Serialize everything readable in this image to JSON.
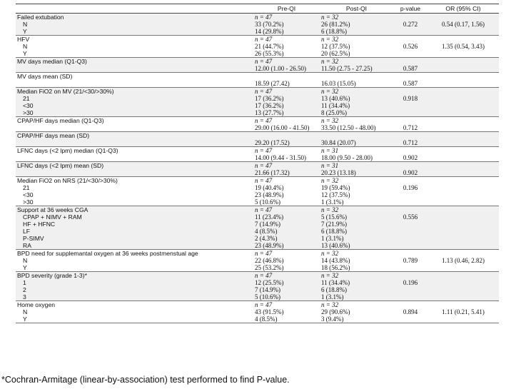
{
  "header": {
    "label": "",
    "pre": "Pre-QI",
    "post": "Post-QI",
    "pvalue": "p-value",
    "or": "OR (95% CI)"
  },
  "groups": [
    {
      "title": "Failed extubation",
      "pre_n": "n = 47",
      "post_n": "n = 32",
      "p": "",
      "or": "",
      "rows": [
        {
          "label": "N",
          "pre": "33 (70.2%)",
          "post": "26 (81.2%)",
          "p": "0.272",
          "or": "0.54 (0.17, 1.56)"
        },
        {
          "label": "Y",
          "pre": "14 (29.8%)",
          "post": "6 (18.8%)",
          "p": "",
          "or": ""
        }
      ]
    },
    {
      "title": "HFV",
      "pre_n": "n = 47",
      "post_n": "n = 32",
      "p": "",
      "or": "",
      "rows": [
        {
          "label": "N",
          "pre": "21 (44.7%)",
          "post": "12 (37.5%)",
          "p": "0.526",
          "or": "1.35 (0.54, 3.43)"
        },
        {
          "label": "Y",
          "pre": "26 (55.3%)",
          "post": "20 (62.5%)",
          "p": "",
          "or": ""
        }
      ]
    },
    {
      "title": "MV days median (Q1-Q3)",
      "pre_n": "n = 47",
      "post_n": "n = 32",
      "p": "",
      "or": "",
      "rows": [
        {
          "label": "",
          "pre": "12.00 (1.00 - 26.50)",
          "post": "11.50 (2.75 - 27.25)",
          "p": "0.587",
          "or": ""
        }
      ]
    },
    {
      "title": "MV days mean (SD)",
      "pre_n": "",
      "post_n": "",
      "p": "",
      "or": "",
      "rows": [
        {
          "label": "",
          "pre": "18.59 (27.42)",
          "post": "16.03 (15.05)",
          "p": "0.587",
          "or": ""
        }
      ]
    },
    {
      "title": "Median FiO2 on MV (21/<30/>30%)",
      "pre_n": "n = 47",
      "post_n": "n = 32",
      "p": "",
      "or": "",
      "rows": [
        {
          "label": "21",
          "pre": "17 (36.2%)",
          "post": "13 (40.6%)",
          "p": "0.918",
          "or": ""
        },
        {
          "label": "<30",
          "pre": "17 (36.2%)",
          "post": "11 (34.4%)",
          "p": "",
          "or": ""
        },
        {
          "label": ">30",
          "pre": "13 (27.7%)",
          "post": "8 (25.0%)",
          "p": "",
          "or": ""
        }
      ]
    },
    {
      "title": "CPAP/HF days median (Q1-Q3)",
      "pre_n": "n = 47",
      "post_n": "n = 32",
      "p": "",
      "or": "",
      "rows": [
        {
          "label": "",
          "pre": "29.00 (16.00 - 41.50)",
          "post": "33.50 (12.50 - 48.00)",
          "p": "0.712",
          "or": ""
        }
      ]
    },
    {
      "title": "CPAP/HF days mean (SD)",
      "pre_n": "",
      "post_n": "",
      "p": "",
      "or": "",
      "rows": [
        {
          "label": "",
          "pre": "29.20 (17.52)",
          "post": "30.84 (20.07)",
          "p": "0.712",
          "or": ""
        }
      ]
    },
    {
      "title": "LFNC days (<2 lpm) median (Q1-Q3)",
      "pre_n": "n = 47",
      "post_n": "n = 31",
      "p": "",
      "or": "",
      "rows": [
        {
          "label": "",
          "pre": "14.00 (9.44 - 31.50)",
          "post": "18.00 (9.50 - 28.00)",
          "p": "0.902",
          "or": ""
        }
      ]
    },
    {
      "title": "LFNC days (<2 lpm) mean (SD)",
      "pre_n": "n = 47",
      "post_n": "n = 31",
      "p": "",
      "or": "",
      "rows": [
        {
          "label": "",
          "pre": "21.66 (17.32)",
          "post": "20.23 (13.18)",
          "p": "0.902",
          "or": ""
        }
      ]
    },
    {
      "title": "Median FiO2 on NRS (21/<30/>30%)",
      "pre_n": "n = 47",
      "post_n": "n = 32",
      "p": "",
      "or": "",
      "rows": [
        {
          "label": "21",
          "pre": "19 (40.4%)",
          "post": "19 (59.4%)",
          "p": "0.196",
          "or": ""
        },
        {
          "label": "<30",
          "pre": "23 (48.9%)",
          "post": "12 (37.5%)",
          "p": "",
          "or": ""
        },
        {
          "label": ">30",
          "pre": "5 (10.6%)",
          "post": "1 (3.1%)",
          "p": "",
          "or": ""
        }
      ]
    },
    {
      "title": "Support at 36 weeks CGA",
      "pre_n": "n = 47",
      "post_n": "n = 32",
      "p": "",
      "or": "",
      "rows": [
        {
          "label": "CPAP + NIMV + RAM",
          "pre": "11 (23.4%)",
          "post": "5 (15.6%)",
          "p": "0.556",
          "or": ""
        },
        {
          "label": "HF + HFNC",
          "pre": "7 (14.9%)",
          "post": "7 (21.9%)",
          "p": "",
          "or": ""
        },
        {
          "label": "LF",
          "pre": "4 (8.5%)",
          "post": "6 (18.8%)",
          "p": "",
          "or": ""
        },
        {
          "label": "P-SIMV",
          "pre": "2 (4.3%)",
          "post": "1 (3.1%)",
          "p": "",
          "or": ""
        },
        {
          "label": "RA",
          "pre": "23 (48.9%)",
          "post": "13 (40.6%)",
          "p": "",
          "or": ""
        }
      ]
    },
    {
      "title": "BPD need for supplemantal oxygen at 36 weeks postmenstual age",
      "pre_n": "n = 47",
      "post_n": "n = 32",
      "p": "",
      "or": "",
      "rows": [
        {
          "label": "N",
          "pre": "22 (46.8%)",
          "post": "14 (43.8%)",
          "p": "0.789",
          "or": "1.13 (0.46, 2.82)"
        },
        {
          "label": "Y",
          "pre": "25 (53.2%)",
          "post": "18 (56.2%)",
          "p": "",
          "or": ""
        }
      ]
    },
    {
      "title": "BPD severity (grade 1-3)*",
      "pre_n": "n = 47",
      "post_n": "n = 32",
      "p": "",
      "or": "",
      "rows": [
        {
          "label": "1",
          "pre": "12 (25.5%)",
          "post": "11 (34.4%)",
          "p": "0.196",
          "or": ""
        },
        {
          "label": "2",
          "pre": "7 (14.9%)",
          "post": "6 (18.8%)",
          "p": "",
          "or": ""
        },
        {
          "label": "3",
          "pre": "5 (10.6%)",
          "post": "1 (3.1%)",
          "p": "",
          "or": ""
        }
      ]
    },
    {
      "title": "Home oxygen",
      "pre_n": "n = 47",
      "post_n": "n = 32",
      "p": "",
      "or": "",
      "rows": [
        {
          "label": "N",
          "pre": "43 (91.5%)",
          "post": "29 (90.6%)",
          "p": "0.894",
          "or": "1.11 (0.21, 5.41)"
        },
        {
          "label": "Y",
          "pre": "4 (8.5%)",
          "post": "3 (9.4%)",
          "p": "",
          "or": ""
        }
      ]
    }
  ],
  "footnote": "*Cochran-Armitage (linear-by-association) test performed to find P-value."
}
